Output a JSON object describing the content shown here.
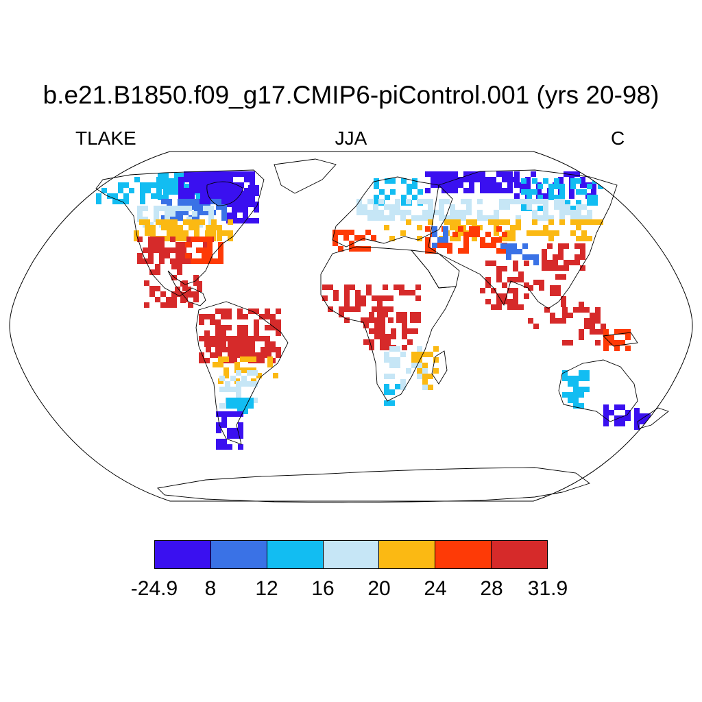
{
  "title": "b.e21.B1850.f09_g17.CMIP6-piControl.001 (yrs 20-98)",
  "left_label": "TLAKE",
  "center_label": "JJA",
  "right_label": "C",
  "colorbar": {
    "labels": [
      "-24.9",
      "8",
      "12",
      "16",
      "20",
      "24",
      "28",
      "31.9"
    ],
    "colors": [
      "#3a10f0",
      "#3a72e6",
      "#12bdf2",
      "#c6e6f6",
      "#fbb913",
      "#fe3a06",
      "#d62a2a"
    ]
  },
  "map": {
    "projection": "Robinson",
    "land_outline_color": "#000000",
    "regions": [
      {
        "name": "Canada north",
        "color_index": 0
      },
      {
        "name": "Canada",
        "color_index": 2
      },
      {
        "name": "Northern USA",
        "color_index": 4
      },
      {
        "name": "Eastern USA",
        "color_index": 6
      },
      {
        "name": "Amazon",
        "color_index": 6
      },
      {
        "name": "Patagonia",
        "color_index": 0
      },
      {
        "name": "Scandinavia",
        "color_index": 2
      },
      {
        "name": "Siberia",
        "color_index": 0
      },
      {
        "name": "Central Asia",
        "color_index": 3
      },
      {
        "name": "Tibet",
        "color_index": 1
      },
      {
        "name": "India",
        "color_index": 6
      },
      {
        "name": "Sahel",
        "color_index": 6
      },
      {
        "name": "Australia",
        "color_index": 2
      }
    ]
  }
}
